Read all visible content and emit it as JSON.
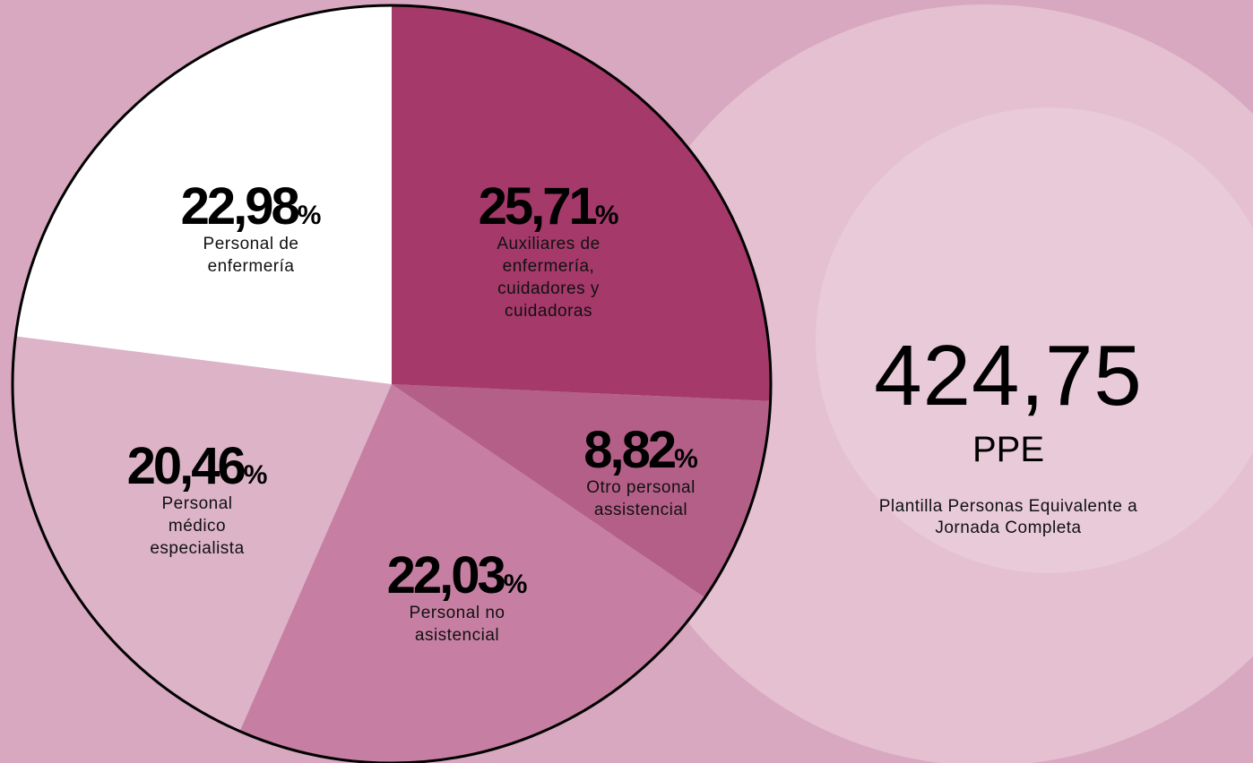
{
  "chart_data": {
    "type": "pie",
    "categories": [
      "Auxiliares de enfermería, cuidadores y cuidadoras",
      "Otro personal assistencial",
      "Personal no asistencial",
      "Personal médico especialista",
      "Personal de enfermería"
    ],
    "values": [
      25.71,
      8.82,
      22.03,
      20.46,
      22.98
    ],
    "value_labels": [
      "25,71%",
      "8,82%",
      "22,03%",
      "20,46%",
      "22,98%"
    ],
    "colors": [
      "#a5396a",
      "#b45f88",
      "#c67fa2",
      "#dcb3c7",
      "#ffffff"
    ]
  },
  "headline": {
    "figure": "424,75",
    "unit": "PPE",
    "description": "Plantilla Personas Equivalente a Jornada Completa"
  }
}
